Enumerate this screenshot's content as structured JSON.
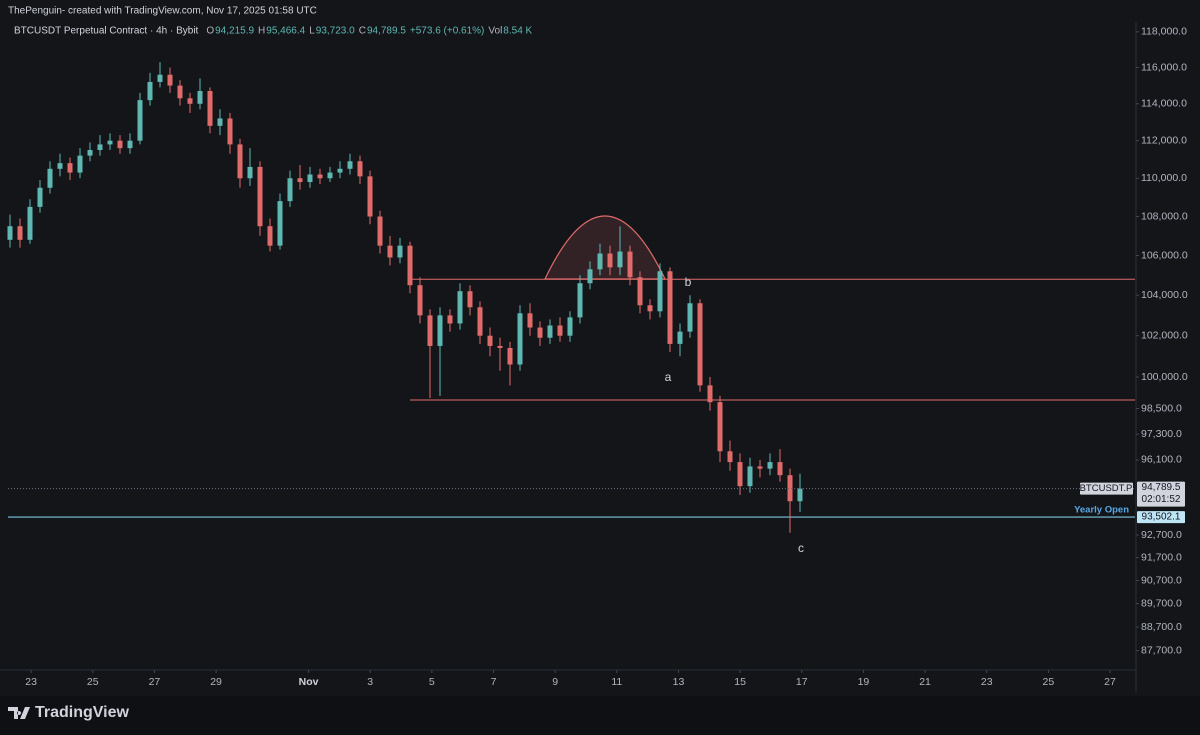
{
  "header": {
    "credit": "ThePenguin- created with TradingView.com, Nov 17, 2025 01:58 UTC",
    "symbol_line": "BTCUSDT Perpetual Contract · 4h · Bybit",
    "ohlc": [
      {
        "label": "O",
        "value_label": "94,215.9"
      },
      {
        "label": "H",
        "value_label": "95,466.4"
      },
      {
        "label": "L",
        "value_label": "93,723.0"
      },
      {
        "label": "C",
        "value_label": "94,789.5"
      }
    ],
    "change": "+573.6 (+0.61%)",
    "volume_label": "Vol",
    "volume": "8.54 K"
  },
  "chart_data": {
    "type": "candlestick",
    "log_scale": true,
    "up_color": "#5fb7b2",
    "down_color": "#e06b6b",
    "candles": [
      [
        106800,
        108100,
        106400,
        107500
      ],
      [
        107500,
        107900,
        106400,
        106800
      ],
      [
        106800,
        108900,
        106600,
        108500
      ],
      [
        108500,
        109900,
        108200,
        109500
      ],
      [
        109500,
        110900,
        109200,
        110500
      ],
      [
        110500,
        111300,
        110100,
        110800
      ],
      [
        110800,
        111100,
        109900,
        110300
      ],
      [
        110300,
        111600,
        110000,
        111200
      ],
      [
        111200,
        111900,
        110900,
        111500
      ],
      [
        111500,
        112300,
        111200,
        111800
      ],
      [
        111800,
        112400,
        111500,
        112000
      ],
      [
        112000,
        112300,
        111300,
        111600
      ],
      [
        111600,
        112400,
        111300,
        112000
      ],
      [
        112000,
        114600,
        111800,
        114200
      ],
      [
        114200,
        115700,
        113900,
        115200
      ],
      [
        115200,
        116300,
        114900,
        115600
      ],
      [
        115600,
        116000,
        114600,
        115000
      ],
      [
        115000,
        115300,
        113900,
        114300
      ],
      [
        114300,
        114600,
        113500,
        114000
      ],
      [
        114000,
        115400,
        113700,
        114700
      ],
      [
        114700,
        114900,
        112400,
        112800
      ],
      [
        112800,
        113700,
        112300,
        113200
      ],
      [
        113200,
        113500,
        111300,
        111800
      ],
      [
        111800,
        112100,
        109500,
        110000
      ],
      [
        110000,
        111600,
        109600,
        110600
      ],
      [
        110600,
        110900,
        107000,
        107500
      ],
      [
        107500,
        107900,
        106200,
        106500
      ],
      [
        106500,
        109200,
        106300,
        108800
      ],
      [
        108800,
        110400,
        108500,
        110000
      ],
      [
        110000,
        110700,
        109400,
        109800
      ],
      [
        109800,
        110600,
        109500,
        110200
      ],
      [
        110200,
        110500,
        109700,
        110000
      ],
      [
        110000,
        110600,
        109800,
        110300
      ],
      [
        110300,
        110900,
        110000,
        110500
      ],
      [
        110500,
        111300,
        110200,
        110900
      ],
      [
        110900,
        111200,
        109700,
        110100
      ],
      [
        110100,
        110400,
        107600,
        108000
      ],
      [
        108000,
        108300,
        106100,
        106500
      ],
      [
        106500,
        107000,
        105500,
        105900
      ],
      [
        105900,
        106900,
        105600,
        106500
      ],
      [
        106500,
        106700,
        104100,
        104500
      ],
      [
        104500,
        104900,
        102600,
        103000
      ],
      [
        103000,
        103300,
        99000,
        101500
      ],
      [
        101500,
        103400,
        99100,
        103000
      ],
      [
        103000,
        103300,
        102200,
        102600
      ],
      [
        102600,
        104600,
        102300,
        104200
      ],
      [
        104200,
        104500,
        103000,
        103400
      ],
      [
        103400,
        103700,
        101600,
        102000
      ],
      [
        102000,
        102400,
        101000,
        101500
      ],
      [
        101500,
        101900,
        100300,
        101400
      ],
      [
        101400,
        101700,
        99600,
        100600
      ],
      [
        100600,
        103500,
        100300,
        103100
      ],
      [
        103100,
        103600,
        102000,
        102400
      ],
      [
        102400,
        102700,
        101500,
        101900
      ],
      [
        101900,
        102800,
        101600,
        102500
      ],
      [
        102500,
        102900,
        101700,
        102000
      ],
      [
        102000,
        103200,
        101700,
        102900
      ],
      [
        102900,
        105000,
        102600,
        104600
      ],
      [
        104600,
        105700,
        104300,
        105300
      ],
      [
        105300,
        106600,
        105000,
        106100
      ],
      [
        106100,
        106500,
        105000,
        105400
      ],
      [
        105400,
        107500,
        105000,
        106200
      ],
      [
        106200,
        106500,
        104500,
        104900
      ],
      [
        104900,
        105200,
        103100,
        103500
      ],
      [
        103500,
        103800,
        102800,
        103200
      ],
      [
        103200,
        105600,
        102900,
        105200
      ],
      [
        105200,
        105400,
        101200,
        101600
      ],
      [
        101600,
        102600,
        101000,
        102200
      ],
      [
        102200,
        104000,
        101900,
        103600
      ],
      [
        103600,
        103800,
        99300,
        99600
      ],
      [
        99600,
        100000,
        98400,
        98800
      ],
      [
        98800,
        99100,
        96000,
        96500
      ],
      [
        96500,
        97000,
        95600,
        96000
      ],
      [
        96000,
        96400,
        94500,
        94900
      ],
      [
        94900,
        96200,
        94600,
        95800
      ],
      [
        95800,
        96100,
        95300,
        95700
      ],
      [
        95700,
        96400,
        95400,
        96000
      ],
      [
        96000,
        96600,
        95100,
        95400
      ],
      [
        95400,
        95700,
        92800,
        94215.9
      ],
      [
        94215.9,
        95466.4,
        93723.0,
        94789.5
      ]
    ],
    "ylim": [
      86890,
      118560
    ],
    "yticks": [
      {
        "value": 118000,
        "label": "118,000.0"
      },
      {
        "value": 116000,
        "label": "116,000.0"
      },
      {
        "value": 114000,
        "label": "114,000.0"
      },
      {
        "value": 112000,
        "label": "112,000.0"
      },
      {
        "value": 110000,
        "label": "110,000.0"
      },
      {
        "value": 108000,
        "label": "108,000.0"
      },
      {
        "value": 106000,
        "label": "106,000.0"
      },
      {
        "value": 104000,
        "label": "104,000.0"
      },
      {
        "value": 102000,
        "label": "102,000.0"
      },
      {
        "value": 100000,
        "label": "100,000.0"
      },
      {
        "value": 98500,
        "label": "98,500.0"
      },
      {
        "value": 97300,
        "label": "97,300.0"
      },
      {
        "value": 96100,
        "label": "96,100.0"
      },
      {
        "value": 92700,
        "label": "92,700.0"
      },
      {
        "value": 91700,
        "label": "91,700.0"
      },
      {
        "value": 90700,
        "label": "90,700.0"
      },
      {
        "value": 89700,
        "label": "89,700.0"
      },
      {
        "value": 88700,
        "label": "88,700.0"
      },
      {
        "value": 87700,
        "label": "87,700.0"
      }
    ],
    "xlim": [
      22.25,
      58.81
    ],
    "xticks": [
      {
        "value": 23,
        "label": "23"
      },
      25,
      27,
      29,
      {
        "value": 32,
        "label": "Nov"
      },
      {
        "value": 34,
        "label": "3"
      },
      {
        "value": 36,
        "label": "5"
      },
      {
        "value": 38,
        "label": "7"
      },
      {
        "value": 40,
        "label": "9"
      },
      {
        "value": 42,
        "label": "11"
      },
      {
        "value": 44,
        "label": "13"
      },
      {
        "value": 46,
        "label": "15"
      },
      {
        "value": 48,
        "label": "17"
      },
      {
        "value": 50,
        "label": "19"
      },
      {
        "value": 52,
        "label": "21"
      },
      {
        "value": 54,
        "label": "23"
      },
      {
        "value": 56,
        "label": "25"
      },
      {
        "value": 58,
        "label": "27"
      }
    ],
    "levels": [
      104800,
      98900
    ],
    "last_price": {
      "symbol": "BTCUSDT.P",
      "value_label": "94,789.5",
      "countdown": "02:01:52"
    },
    "yearly_open": {
      "label": "Yearly Open",
      "value": 93502.1,
      "value_label": "93,502.1"
    },
    "annotations": [
      "a",
      "b",
      "c"
    ]
  },
  "footer": {
    "brand": "TradingView"
  }
}
